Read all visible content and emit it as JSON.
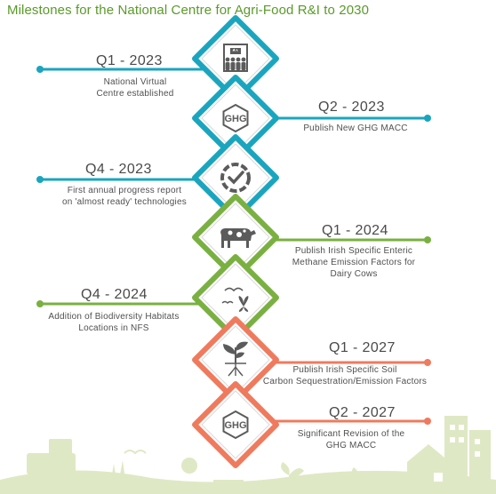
{
  "title": "Milestones for the National Centre for Agri-Food R&I to 2030",
  "colors": {
    "teal": "#1aa5bf",
    "green": "#7ab041",
    "coral": "#ef7a5d",
    "icon_gray": "#5b5b5b",
    "landscape": "#dfe8c4",
    "title_green": "#5a9a2a"
  },
  "milestones": [
    {
      "quarter": "Q1 - 2023",
      "desc": [
        "National Virtual",
        "Centre established"
      ],
      "side": "left",
      "icon": "building-people-icon",
      "color": "teal"
    },
    {
      "quarter": "Q2 - 2023",
      "desc": [
        "Publish New GHG MACC"
      ],
      "side": "right",
      "icon": "ghg-icon",
      "icon_text": "GHG",
      "color": "teal"
    },
    {
      "quarter": "Q4 - 2023",
      "desc": [
        "First annual progress report",
        "on 'almost ready' technologies"
      ],
      "side": "left",
      "icon": "progress-check-icon",
      "color": "teal"
    },
    {
      "quarter": "Q1 - 2024",
      "desc": [
        "Publish Irish Specific Enteric",
        "Methane Emission Factors for",
        "Dairy Cows"
      ],
      "side": "right",
      "icon": "cow-icon",
      "color": "green"
    },
    {
      "quarter": "Q4 - 2024",
      "desc": [
        "Addition of Biodiversity Habitats",
        "Locations in NFS"
      ],
      "side": "left",
      "icon": "birds-butterfly-icon",
      "color": "green"
    },
    {
      "quarter": "Q1 - 2027",
      "desc": [
        "Publish Irish Specific Soil",
        "Carbon Sequestration/Emission Factors"
      ],
      "side": "right",
      "icon": "plant-roots-icon",
      "color": "coral"
    },
    {
      "quarter": "Q2 - 2027",
      "desc": [
        "Significant Revision of the",
        "GHG MACC"
      ],
      "side": "right",
      "icon": "ghg-icon",
      "icon_text": "GHG",
      "color": "coral"
    }
  ]
}
